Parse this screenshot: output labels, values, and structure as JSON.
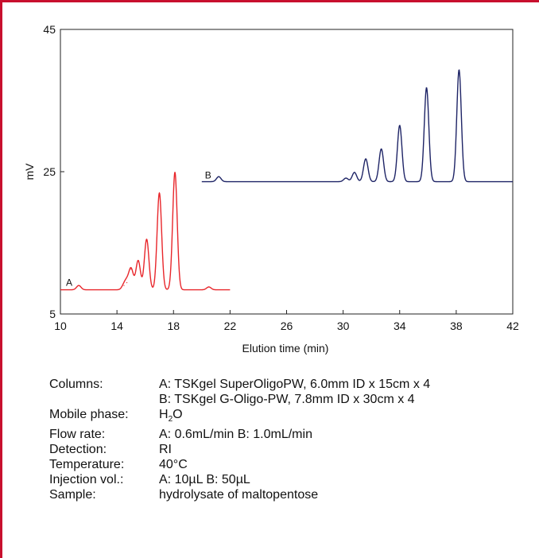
{
  "colors": {
    "frame": "#c8102e",
    "series_a": "#e8262b",
    "series_b": "#1e2466",
    "axis": "#222222"
  },
  "chart_data": {
    "type": "line",
    "title": "",
    "xlabel": "Elution time (min)",
    "ylabel": "mV",
    "xlim": [
      10,
      42
    ],
    "ylim": [
      5,
      45
    ],
    "x_ticks": [
      10,
      14,
      18,
      22,
      26,
      30,
      34,
      38,
      42
    ],
    "y_ticks": [
      5,
      25,
      45
    ],
    "grid": false,
    "legend": "none",
    "series": [
      {
        "name": "A",
        "color": "#e8262b",
        "x_range": [
          10,
          22
        ],
        "baseline": 8.4,
        "peaks": [
          {
            "x": 11.3,
            "y": 9.0
          },
          {
            "x": 14.5,
            "y": 9.0
          },
          {
            "x": 14.7,
            "y": 9.4
          },
          {
            "x": 15.0,
            "y": 11.3
          },
          {
            "x": 15.5,
            "y": 12.5
          },
          {
            "x": 16.1,
            "y": 15.5
          },
          {
            "x": 17.0,
            "y": 22.0
          },
          {
            "x": 18.1,
            "y": 24.9
          },
          {
            "x": 20.5,
            "y": 8.8
          }
        ]
      },
      {
        "name": "B",
        "color": "#1e2466",
        "x_range": [
          20,
          42
        ],
        "baseline": 23.6,
        "peaks": [
          {
            "x": 21.2,
            "y": 24.3
          },
          {
            "x": 30.2,
            "y": 24.1
          },
          {
            "x": 30.8,
            "y": 24.9
          },
          {
            "x": 31.6,
            "y": 26.8
          },
          {
            "x": 32.7,
            "y": 28.2
          },
          {
            "x": 34.0,
            "y": 31.5
          },
          {
            "x": 35.9,
            "y": 36.8
          },
          {
            "x": 38.2,
            "y": 39.3
          }
        ]
      }
    ]
  },
  "conditions": [
    {
      "label": "Columns:",
      "value": "A: TSKgel SuperOligoPW, 6.0mm ID x 15cm x 4"
    },
    {
      "label": "",
      "value": "B: TSKgel G-Oligo-PW, 7.8mm ID x 30cm x 4"
    },
    {
      "label": "Mobile phase:",
      "value": "H",
      "sub": "2",
      "value_after": "O"
    },
    {
      "label": "Flow rate:",
      "value": "A: 0.6mL/min  B: 1.0mL/min"
    },
    {
      "label": "Detection:",
      "value": "RI"
    },
    {
      "label": "Temperature:",
      "value": "40°C"
    },
    {
      "label": "Injection vol.:",
      "value": "A: 10µL  B: 50µL"
    },
    {
      "label": "Sample:",
      "value": "hydrolysate of maltopentose"
    }
  ]
}
